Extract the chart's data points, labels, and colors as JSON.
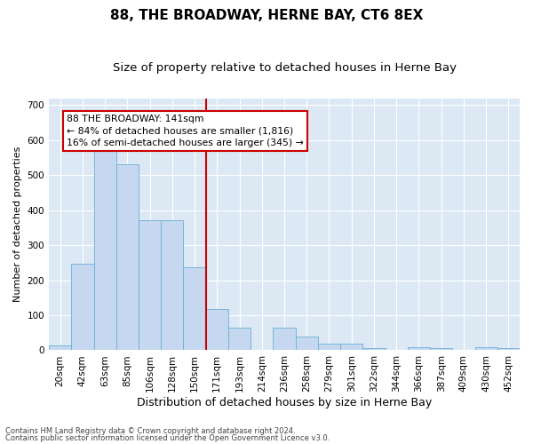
{
  "title": "88, THE BROADWAY, HERNE BAY, CT6 8EX",
  "subtitle": "Size of property relative to detached houses in Herne Bay",
  "xlabel": "Distribution of detached houses by size in Herne Bay",
  "ylabel": "Number of detached properties",
  "footer1": "Contains HM Land Registry data © Crown copyright and database right 2024.",
  "footer2": "Contains public sector information licensed under the Open Government Licence v3.0.",
  "categories": [
    "20sqm",
    "42sqm",
    "63sqm",
    "85sqm",
    "106sqm",
    "128sqm",
    "150sqm",
    "171sqm",
    "193sqm",
    "214sqm",
    "236sqm",
    "258sqm",
    "279sqm",
    "301sqm",
    "322sqm",
    "344sqm",
    "366sqm",
    "387sqm",
    "409sqm",
    "430sqm",
    "452sqm"
  ],
  "values": [
    15,
    248,
    585,
    530,
    372,
    372,
    237,
    118,
    65,
    0,
    65,
    40,
    20,
    20,
    5,
    0,
    10,
    5,
    0,
    8,
    5
  ],
  "bar_color": "#c5d8f0",
  "bar_edge_color": "#6aaed6",
  "vline_color": "#cc0000",
  "vline_pos": 6.5,
  "annotation_text": "88 THE BROADWAY: 141sqm\n← 84% of detached houses are smaller (1,816)\n16% of semi-detached houses are larger (345) →",
  "annotation_box_color": "#ffffff",
  "annotation_box_edge_color": "#cc0000",
  "ylim": [
    0,
    720
  ],
  "yticks": [
    0,
    100,
    200,
    300,
    400,
    500,
    600,
    700
  ],
  "plot_bg_color": "#dce9f5",
  "title_fontsize": 11,
  "subtitle_fontsize": 9.5,
  "tick_fontsize": 7.5,
  "xlabel_fontsize": 9,
  "ylabel_fontsize": 8,
  "annot_fontsize": 7.8
}
